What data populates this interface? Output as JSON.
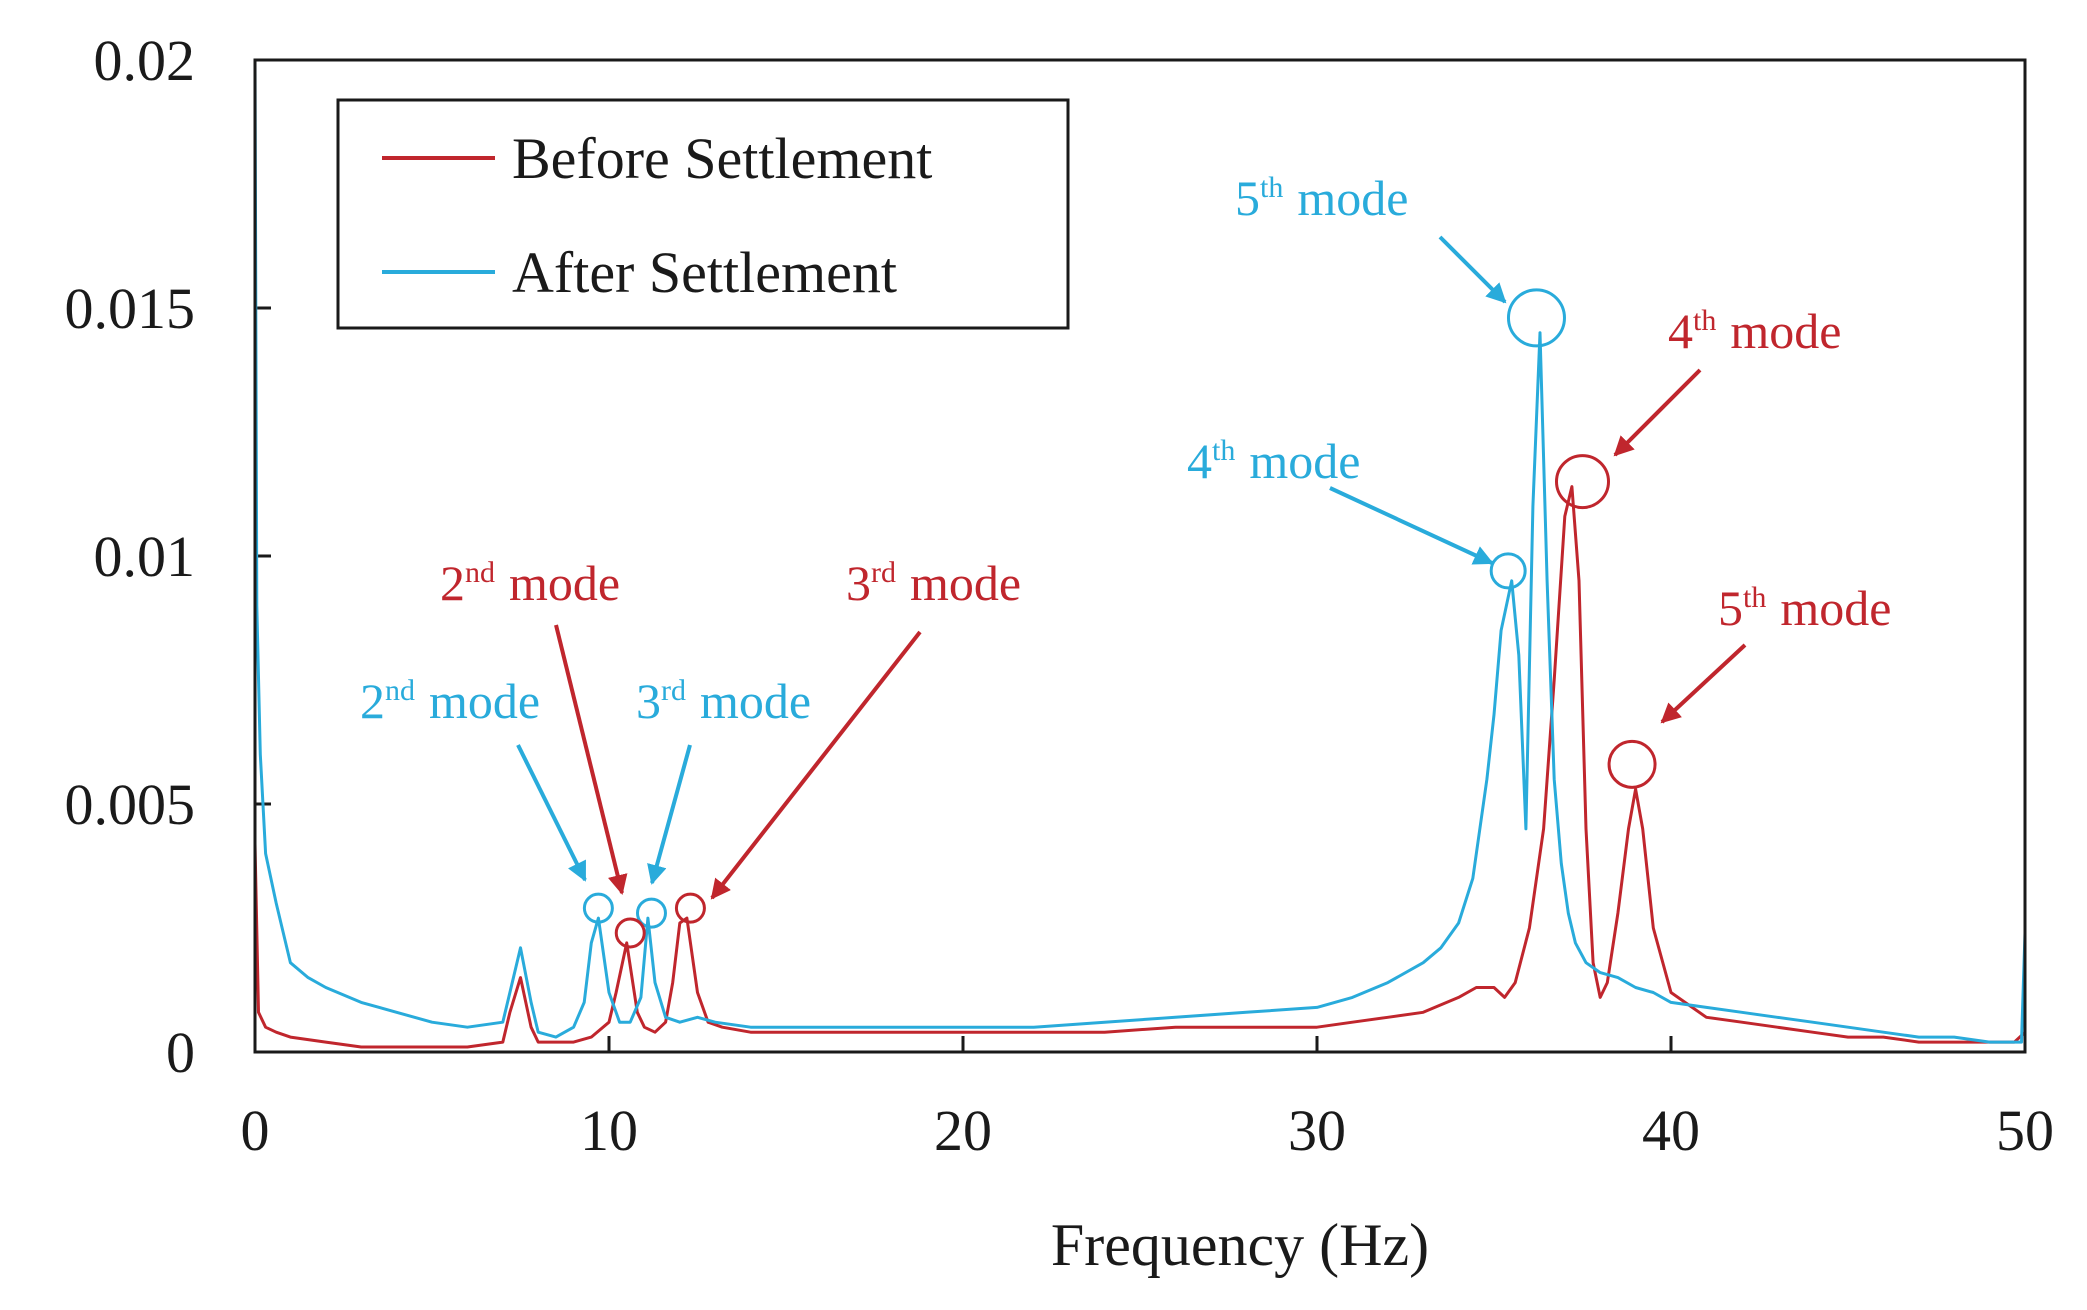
{
  "chart_data": {
    "type": "line",
    "title": "",
    "xlabel": "Frequency (Hz)",
    "ylabel": "",
    "xlim": [
      0,
      50
    ],
    "ylim": [
      0,
      0.02
    ],
    "xticks": [
      0,
      10,
      20,
      30,
      40,
      50
    ],
    "xtick_labels": [
      "0",
      "10",
      "20",
      "30",
      "40",
      "50"
    ],
    "yticks": [
      0,
      0.005,
      0.01,
      0.015,
      0.02
    ],
    "ytick_labels": [
      "0",
      "0.005",
      "0.01",
      "0.015",
      "0.02"
    ],
    "legend": {
      "placement": "top-left",
      "entries": [
        "Before Settlement",
        "After Settlement"
      ]
    },
    "series": [
      {
        "name": "Before Settlement",
        "color": "#c0262d",
        "x": [
          0,
          0.1,
          0.3,
          0.6,
          1,
          2,
          3,
          4,
          5,
          6,
          7,
          7.2,
          7.5,
          7.8,
          8,
          9,
          9.5,
          10,
          10.2,
          10.5,
          10.8,
          11,
          11.3,
          11.6,
          11.8,
          12,
          12.2,
          12.5,
          12.8,
          13.2,
          14,
          15,
          16,
          17,
          18,
          19,
          20,
          22,
          24,
          26,
          28,
          30,
          31,
          32,
          33,
          34,
          34.5,
          35,
          35.3,
          35.6,
          36,
          36.4,
          36.7,
          37,
          37.2,
          37.4,
          37.6,
          37.8,
          38,
          38.2,
          38.5,
          38.8,
          39,
          39.2,
          39.5,
          40,
          41,
          42,
          43,
          44,
          45,
          46,
          47,
          48,
          49,
          49.7,
          50
        ],
        "y": [
          0.0042,
          0.0008,
          0.0005,
          0.0004,
          0.0003,
          0.0002,
          0.0001,
          0.0001,
          0.0001,
          0.0001,
          0.0002,
          0.0008,
          0.0015,
          0.0005,
          0.0002,
          0.0002,
          0.0003,
          0.0006,
          0.0012,
          0.0022,
          0.0008,
          0.0005,
          0.0004,
          0.0006,
          0.0014,
          0.0026,
          0.0027,
          0.0012,
          0.0006,
          0.0005,
          0.0004,
          0.0004,
          0.0004,
          0.0004,
          0.0004,
          0.0004,
          0.0004,
          0.0004,
          0.0004,
          0.0005,
          0.0005,
          0.0005,
          0.0006,
          0.0007,
          0.0008,
          0.0011,
          0.0013,
          0.0013,
          0.0011,
          0.0014,
          0.0025,
          0.0045,
          0.0075,
          0.0108,
          0.0114,
          0.0095,
          0.0045,
          0.0018,
          0.0011,
          0.0014,
          0.0028,
          0.0045,
          0.0053,
          0.0045,
          0.0025,
          0.0012,
          0.0007,
          0.0006,
          0.0005,
          0.0004,
          0.0003,
          0.0003,
          0.0002,
          0.0002,
          0.0002,
          0.0002,
          0.0004
        ]
      },
      {
        "name": "After Settlement",
        "color": "#29abdb",
        "x": [
          0,
          0.05,
          0.15,
          0.3,
          0.6,
          1,
          1.5,
          2,
          3,
          4,
          5,
          6,
          7,
          7.2,
          7.5,
          7.8,
          8,
          8.5,
          9,
          9.3,
          9.5,
          9.7,
          10,
          10.3,
          10.6,
          10.9,
          11.1,
          11.3,
          11.6,
          12,
          12.5,
          13,
          14,
          15,
          16,
          17,
          18,
          19,
          20,
          22,
          24,
          26,
          28,
          30,
          31,
          32,
          33,
          33.5,
          34,
          34.4,
          34.8,
          35,
          35.2,
          35.5,
          35.7,
          35.9,
          36.1,
          36.3,
          36.5,
          36.7,
          36.9,
          37.1,
          37.3,
          37.6,
          38,
          38.5,
          39,
          39.5,
          40,
          41,
          42,
          43,
          44,
          45,
          46,
          47,
          48,
          49,
          49.5,
          49.9,
          50
        ],
        "y": [
          0.02,
          0.009,
          0.006,
          0.004,
          0.003,
          0.0018,
          0.0015,
          0.0013,
          0.001,
          0.0008,
          0.0006,
          0.0005,
          0.0006,
          0.0012,
          0.0021,
          0.001,
          0.0004,
          0.0003,
          0.0005,
          0.001,
          0.0022,
          0.0027,
          0.0012,
          0.0006,
          0.0006,
          0.0011,
          0.0027,
          0.0014,
          0.0007,
          0.0006,
          0.0007,
          0.0006,
          0.0005,
          0.0005,
          0.0005,
          0.0005,
          0.0005,
          0.0005,
          0.0005,
          0.0005,
          0.0006,
          0.0007,
          0.0008,
          0.0009,
          0.0011,
          0.0014,
          0.0018,
          0.0021,
          0.0026,
          0.0035,
          0.0055,
          0.0068,
          0.0085,
          0.0095,
          0.008,
          0.0045,
          0.011,
          0.0145,
          0.0095,
          0.0055,
          0.0038,
          0.0028,
          0.0022,
          0.0018,
          0.0016,
          0.0015,
          0.0013,
          0.0012,
          0.001,
          0.0009,
          0.0008,
          0.0007,
          0.0006,
          0.0005,
          0.0004,
          0.0003,
          0.0003,
          0.0002,
          0.0002,
          0.0002,
          0.0024
        ]
      }
    ],
    "annotations": [
      {
        "id": "after-5",
        "series": "After Settlement",
        "ordinal": "5",
        "sup": "th",
        "text": "mode",
        "x": 36.2,
        "y": 0.0148
      },
      {
        "id": "after-4",
        "series": "After Settlement",
        "ordinal": "4",
        "sup": "th",
        "text": "mode",
        "x": 35.4,
        "y": 0.0097
      },
      {
        "id": "after-2",
        "series": "After Settlement",
        "ordinal": "2",
        "sup": "nd",
        "text": "mode",
        "x": 9.7,
        "y": 0.0029
      },
      {
        "id": "after-3",
        "series": "After Settlement",
        "ordinal": "3",
        "sup": "rd",
        "text": "mode",
        "x": 11.2,
        "y": 0.0028
      },
      {
        "id": "before-4",
        "series": "Before Settlement",
        "ordinal": "4",
        "sup": "th",
        "text": "mode",
        "x": 37.5,
        "y": 0.0115
      },
      {
        "id": "before-5",
        "series": "Before Settlement",
        "ordinal": "5",
        "sup": "th",
        "text": "mode",
        "x": 38.9,
        "y": 0.0058
      },
      {
        "id": "before-2",
        "series": "Before Settlement",
        "ordinal": "2",
        "sup": "nd",
        "text": "mode",
        "x": 10.6,
        "y": 0.0024
      },
      {
        "id": "before-3",
        "series": "Before Settlement",
        "ordinal": "3",
        "sup": "rd",
        "text": "mode",
        "x": 12.3,
        "y": 0.0029
      }
    ]
  }
}
